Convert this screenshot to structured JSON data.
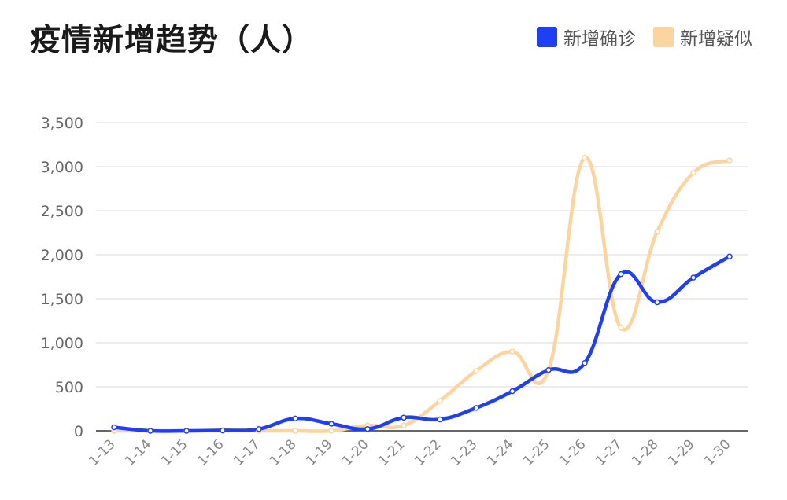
{
  "chart_data": {
    "type": "line",
    "title": "疫情新增趋势（人）",
    "categories": [
      "1-13",
      "1-14",
      "1-15",
      "1-16",
      "1-17",
      "1-18",
      "1-19",
      "1-20",
      "1-21",
      "1-22",
      "1-23",
      "1-24",
      "1-25",
      "1-26",
      "1-27",
      "1-28",
      "1-29",
      "1-30"
    ],
    "series": [
      {
        "name": "新增确诊",
        "color": "#1f3ff5",
        "values": [
          40,
          0,
          0,
          5,
          20,
          140,
          80,
          20,
          150,
          130,
          260,
          450,
          690,
          770,
          1780,
          1460,
          1740,
          1980
        ]
      },
      {
        "name": "新增疑似",
        "color": "#fcd4a0",
        "values": [
          0,
          0,
          0,
          0,
          0,
          0,
          0,
          60,
          60,
          340,
          680,
          900,
          690,
          3100,
          1170,
          2260,
          2930,
          3070
        ]
      }
    ],
    "yticks": [
      "0",
      "500",
      "1,000",
      "1,500",
      "2,000",
      "2,500",
      "3,000",
      "3,500"
    ],
    "ylim": [
      0,
      3500
    ],
    "grid": true,
    "legend_position": "top-right"
  }
}
